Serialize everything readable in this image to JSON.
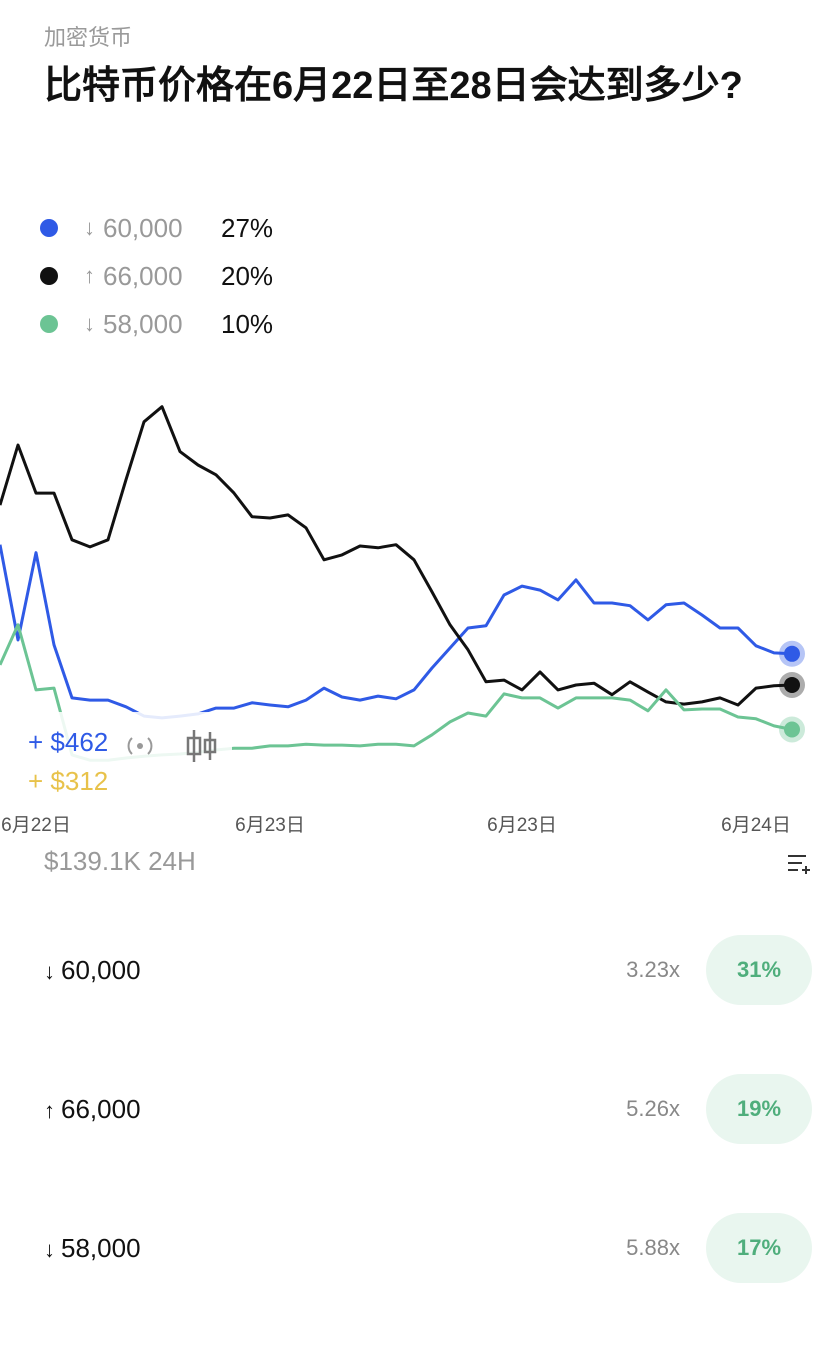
{
  "header": {
    "category": "加密货币",
    "title": "比特币价格在6月22日至28日会达到多少?"
  },
  "chart_data": {
    "type": "line",
    "categories": [
      null,
      null,
      "6月22日",
      null,
      null,
      null,
      null,
      null,
      null,
      null,
      null,
      null,
      null,
      null,
      null,
      "6月23日",
      null,
      null,
      null,
      null,
      null,
      null,
      null,
      null,
      null,
      null,
      null,
      null,
      null,
      "6月23日",
      null,
      null,
      null,
      null,
      null,
      null,
      null,
      null,
      null,
      null,
      null,
      null,
      "6月24日",
      null,
      null
    ],
    "ylim": [
      0,
      84
    ],
    "series": [
      {
        "name": "60,000",
        "direction": "↓",
        "chance": "27%",
        "color": "#2f5ae6",
        "values": [
          51.5,
          30.1,
          49.7,
          29.0,
          17.1,
          16.6,
          16.6,
          15.1,
          13.0,
          12.6,
          13.0,
          13.5,
          14.8,
          14.8,
          16.0,
          15.5,
          15.1,
          16.6,
          19.3,
          17.3,
          16.6,
          17.5,
          16.9,
          18.9,
          23.8,
          28.3,
          32.8,
          33.3,
          40.2,
          42.2,
          41.3,
          39.1,
          43.6,
          38.4,
          38.4,
          37.8,
          34.6,
          38.0,
          38.4,
          35.7,
          32.8,
          32.8,
          28.8,
          27.2,
          27.0
        ]
      },
      {
        "name": "66,000",
        "direction": "↑",
        "chance": "20%",
        "color": "#111111",
        "values": [
          60.4,
          73.9,
          63.1,
          63.1,
          52.6,
          51.0,
          52.6,
          66.1,
          79.1,
          82.5,
          72.4,
          69.4,
          67.2,
          63.1,
          57.8,
          57.5,
          58.2,
          55.3,
          48.1,
          49.2,
          51.2,
          50.8,
          51.5,
          48.1,
          40.9,
          33.5,
          27.9,
          20.7,
          21.1,
          18.9,
          22.9,
          18.9,
          20.0,
          20.4,
          17.8,
          20.7,
          18.4,
          16.2,
          15.7,
          16.2,
          17.1,
          15.5,
          19.3,
          19.8,
          20.0
        ]
      },
      {
        "name": "58,000",
        "direction": "↓",
        "chance": "10%",
        "color": "#6cc494",
        "values": [
          24.5,
          33.5,
          18.9,
          19.3,
          4.3,
          3.1,
          3.1,
          3.6,
          4.0,
          4.3,
          4.5,
          4.9,
          5.4,
          5.8,
          5.8,
          6.3,
          6.3,
          6.7,
          6.5,
          6.5,
          6.3,
          6.7,
          6.7,
          6.3,
          8.8,
          11.7,
          13.7,
          13.0,
          18.0,
          17.1,
          17.1,
          14.8,
          17.1,
          17.1,
          17.1,
          16.6,
          14.2,
          18.9,
          14.4,
          14.6,
          14.6,
          12.8,
          12.4,
          10.8,
          10.0
        ]
      }
    ]
  },
  "overlay": {
    "gain_blue": "+ $462",
    "gain_yellow": "+ $312"
  },
  "volume": "$139.1K 24H",
  "rows": [
    {
      "direction": "↓",
      "label": "60,000",
      "multiplier": "3.23x",
      "price": "31%"
    },
    {
      "direction": "↑",
      "label": "66,000",
      "multiplier": "5.26x",
      "price": "19%"
    },
    {
      "direction": "↓",
      "label": "58,000",
      "multiplier": "5.88x",
      "price": "17%"
    }
  ]
}
